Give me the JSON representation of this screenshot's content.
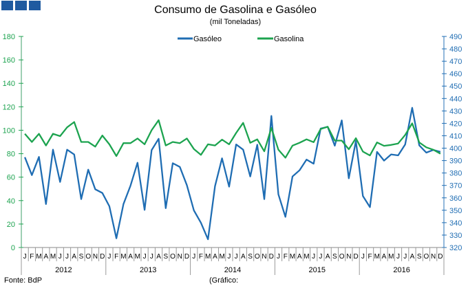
{
  "header_icons": [
    "square-icon",
    "square-icon",
    "square-icon"
  ],
  "colors": {
    "gasoleo": "#1f6db3",
    "gasolina": "#1ca34f",
    "grid": "#999999"
  },
  "chart_data": {
    "type": "line",
    "title": "Consumo de Gasolina e Gasóleo",
    "subtitle": "(mil Toneladas)",
    "source": "Fonte: BdP",
    "note": "(Gráfico:",
    "years": [
      "2012",
      "2013",
      "2014",
      "2015",
      "2016"
    ],
    "month_labels": [
      "J",
      "F",
      "M",
      "A",
      "M",
      "J",
      "J",
      "A",
      "S",
      "O",
      "N",
      "D"
    ],
    "y_left": {
      "range": [
        0,
        180
      ],
      "ticks": [
        0,
        20,
        40,
        60,
        80,
        100,
        120,
        140,
        160,
        180
      ],
      "series": "Gasolina"
    },
    "y_right": {
      "range": [
        320,
        490
      ],
      "ticks": [
        320,
        330,
        340,
        350,
        360,
        370,
        380,
        390,
        400,
        410,
        420,
        430,
        440,
        450,
        460,
        470,
        480,
        490
      ],
      "series": "Gasóleo"
    },
    "legend_position": "top-center",
    "grid": false,
    "series": [
      {
        "name": "Gasóleo",
        "axis": "right",
        "values": [
          392.7,
          378.3,
          393,
          355,
          398.8,
          372.8,
          398.8,
          394.9,
          359,
          382.7,
          366.9,
          363.9,
          353.2,
          327.4,
          355,
          369.8,
          388.3,
          350.3,
          398.4,
          407.6,
          351.7,
          387.9,
          384.9,
          370.2,
          349.9,
          340,
          326.6,
          369.4,
          391.8,
          369,
          403,
          398.8,
          377.2,
          402.8,
          359,
          426,
          362.8,
          344.7,
          377.2,
          382.2,
          390.8,
          387.5,
          415.8,
          417.2,
          402,
          422.4,
          375.7,
          405.8,
          361.5,
          352.5,
          397,
          390,
          395,
          394.2,
          403,
          432.5,
          402.3,
          396.4,
          398.6,
          397
        ]
      },
      {
        "name": "Gasolina",
        "axis": "left",
        "values": [
          97,
          90,
          97,
          87,
          97,
          95,
          102.5,
          107,
          90,
          90,
          86,
          95.5,
          88,
          78,
          89,
          89,
          93,
          88,
          100,
          108.6,
          87,
          90,
          89,
          93,
          84,
          79,
          88,
          87,
          92,
          88,
          97.7,
          106.3,
          89.3,
          92.2,
          82,
          102,
          83.4,
          76.6,
          86.9,
          89.3,
          92.2,
          89.8,
          101,
          103,
          91.2,
          91.2,
          83.8,
          93.2,
          81.8,
          78.5,
          89.6,
          86.7,
          87.5,
          88.7,
          96,
          105.9,
          89.6,
          85.4,
          83.4,
          80
        ]
      }
    ]
  }
}
